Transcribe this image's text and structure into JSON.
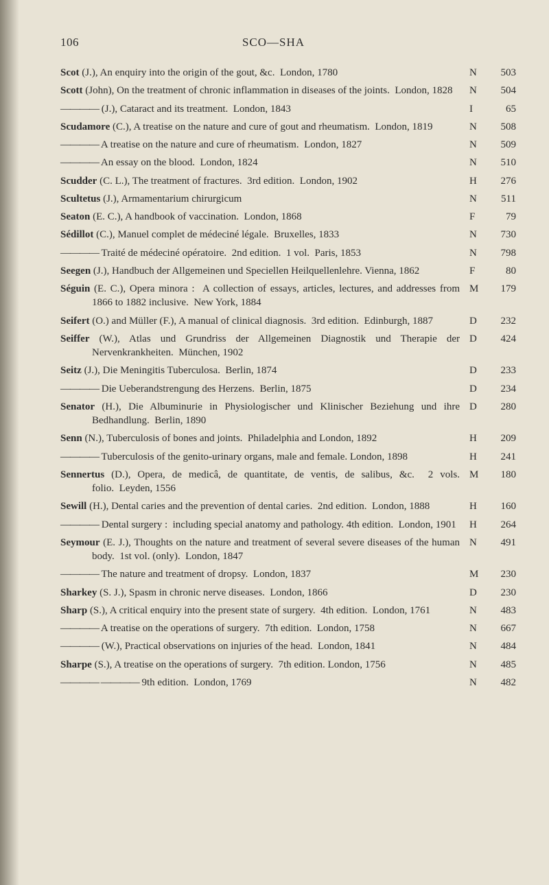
{
  "page_number": "106",
  "running_head": "SCO—SHA",
  "dash": "————",
  "dash2": "———— ————",
  "entries": [
    {
      "text": "<span class='author'>Scot</span> (J.), An enquiry into the origin of the gout, &c.&nbsp;&nbsp;London, 1780",
      "code": "N",
      "num": "503"
    },
    {
      "text": "<span class='author'>Scott</span> (John), On the treatment of chronic inflammation in diseases of the joints.&nbsp;&nbsp;London, 1828",
      "code": "N",
      "num": "504"
    },
    {
      "text": "{{DASH}} (J.), Cataract and its treatment.&nbsp;&nbsp;London, 1843",
      "code": "I",
      "num": "65"
    },
    {
      "text": "<span class='author'>Scudamore</span> (C.), A treatise on the nature and cure of gout and rheumatism.&nbsp;&nbsp;London, 1819",
      "code": "N",
      "num": "508"
    },
    {
      "text": "{{DASH}} A treatise on the nature and cure of rheumatism.&nbsp;&nbsp;London, 1827",
      "code": "N",
      "num": "509"
    },
    {
      "text": "{{DASH}} An essay on the blood.&nbsp;&nbsp;London, 1824",
      "code": "N",
      "num": "510"
    },
    {
      "text": "<span class='author'>Scudder</span> (C. L.), The treatment of fractures.&nbsp;&nbsp;3rd edition.&nbsp;&nbsp;London, 1902",
      "code": "H",
      "num": "276"
    },
    {
      "text": "<span class='author'>Scultetus</span> (J.), Armamentarium chirurgicum",
      "code": "N",
      "num": "511"
    },
    {
      "text": "<span class='author'>Seaton</span> (E. C.), A handbook of vaccination.&nbsp;&nbsp;London, 1868",
      "code": "F",
      "num": "79"
    },
    {
      "text": "<span class='author'>Sédillot</span> (C.), Manuel complet de médeciné légale.&nbsp;&nbsp;Bruxelles, 1833",
      "code": "N",
      "num": "730"
    },
    {
      "text": "{{DASH}} Traité de médeciné opératoire.&nbsp;&nbsp;2nd edition.&nbsp;&nbsp;1 vol.&nbsp;&nbsp;Paris, 1853",
      "code": "N",
      "num": "798"
    },
    {
      "text": "<span class='author'>Seegen</span> (J.), Handbuch der Allgemeinen und Speciellen Heilquellenlehre. Vienna, 1862",
      "code": "F",
      "num": "80"
    },
    {
      "text": "<span class='author'>Séguin</span> (E. C.), Opera minora :&nbsp;&nbsp;A collection of essays, articles, lectures, and addresses from 1866 to 1882 inclusive.&nbsp;&nbsp;New York, 1884",
      "code": "M",
      "num": "179"
    },
    {
      "text": "<span class='author'>Seifert</span> (O.) and Müller (F.), A manual of clinical diagnosis.&nbsp;&nbsp;3rd edition.&nbsp;&nbsp;Edinburgh, 1887",
      "code": "D",
      "num": "232"
    },
    {
      "text": "<span class='author'>Seiffer</span> (W.), Atlas und Grundriss der Allgemeinen Diagnostik und Therapie der Nervenkrankheiten.&nbsp;&nbsp;München, 1902",
      "code": "D",
      "num": "424"
    },
    {
      "text": "<span class='author'>Seitz</span> (J.), Die Meningitis Tuberculosa.&nbsp;&nbsp;Berlin, 1874",
      "code": "D",
      "num": "233"
    },
    {
      "text": "{{DASH}} Die Ueberandstrengung des Herzens.&nbsp;&nbsp;Berlin, 1875",
      "code": "D",
      "num": "234"
    },
    {
      "text": "<span class='author'>Senator</span> (H.), Die Albuminurie in Physiologischer und Klinischer Beziehung und ihre Bedhandlung.&nbsp;&nbsp;Berlin, 1890",
      "code": "D",
      "num": "280"
    },
    {
      "text": "<span class='author'>Senn</span> (N.), Tuberculosis of bones and joints.&nbsp;&nbsp;Philadelphia and London, 1892",
      "code": "H",
      "num": "209"
    },
    {
      "text": "{{DASH}} Tuberculosis of the genito-urinary organs, male and female. London, 1898",
      "code": "H",
      "num": "241"
    },
    {
      "text": "<span class='author'>Sennertus</span> (D.), Opera, de medicâ, de quantitate, de ventis, de salibus, &c.&nbsp;&nbsp;2 vols. folio.&nbsp;&nbsp;Leyden, 1556",
      "code": "M",
      "num": "180"
    },
    {
      "text": "<span class='author'>Sewill</span> (H.), Dental caries and the prevention of dental caries.&nbsp;&nbsp;2nd edition.&nbsp;&nbsp;London, 1888",
      "code": "H",
      "num": "160"
    },
    {
      "text": "{{DASH}} Dental surgery :&nbsp;&nbsp;including special anatomy and pathology. 4th edition.&nbsp;&nbsp;London, 1901",
      "code": "H",
      "num": "264"
    },
    {
      "text": "<span class='author'>Seymour</span> (E. J.), Thoughts on the nature and treatment of several severe diseases of the human body.&nbsp;&nbsp;1st vol. (only).&nbsp;&nbsp;London, 1847",
      "code": "N",
      "num": "491"
    },
    {
      "text": "{{DASH}} The nature and treatment of dropsy.&nbsp;&nbsp;London, 1837",
      "code": "M",
      "num": "230"
    },
    {
      "text": "<span class='author'>Sharkey</span> (S. J.), Spasm in chronic nerve diseases.&nbsp;&nbsp;London, 1866",
      "code": "D",
      "num": "230"
    },
    {
      "text": "<span class='author'>Sharp</span> (S.), A critical enquiry into the present state of surgery.&nbsp;&nbsp;4th edition.&nbsp;&nbsp;London, 1761",
      "code": "N",
      "num": "483"
    },
    {
      "text": "{{DASH}} A treatise on the operations of surgery.&nbsp;&nbsp;7th edition.&nbsp;&nbsp;London, 1758",
      "code": "N",
      "num": "667"
    },
    {
      "text": "{{DASH}} (W.), Practical observations on injuries of the head.&nbsp;&nbsp;London, 1841",
      "code": "N",
      "num": "484"
    },
    {
      "text": "<span class='author'>Sharpe</span> (S.), A treatise on the operations of surgery.&nbsp;&nbsp;7th edition. London, 1756",
      "code": "N",
      "num": "485"
    },
    {
      "text": "{{DASH2}} 9th edition.&nbsp;&nbsp;London, 1769",
      "code": "N",
      "num": "482",
      "deep": true
    }
  ]
}
